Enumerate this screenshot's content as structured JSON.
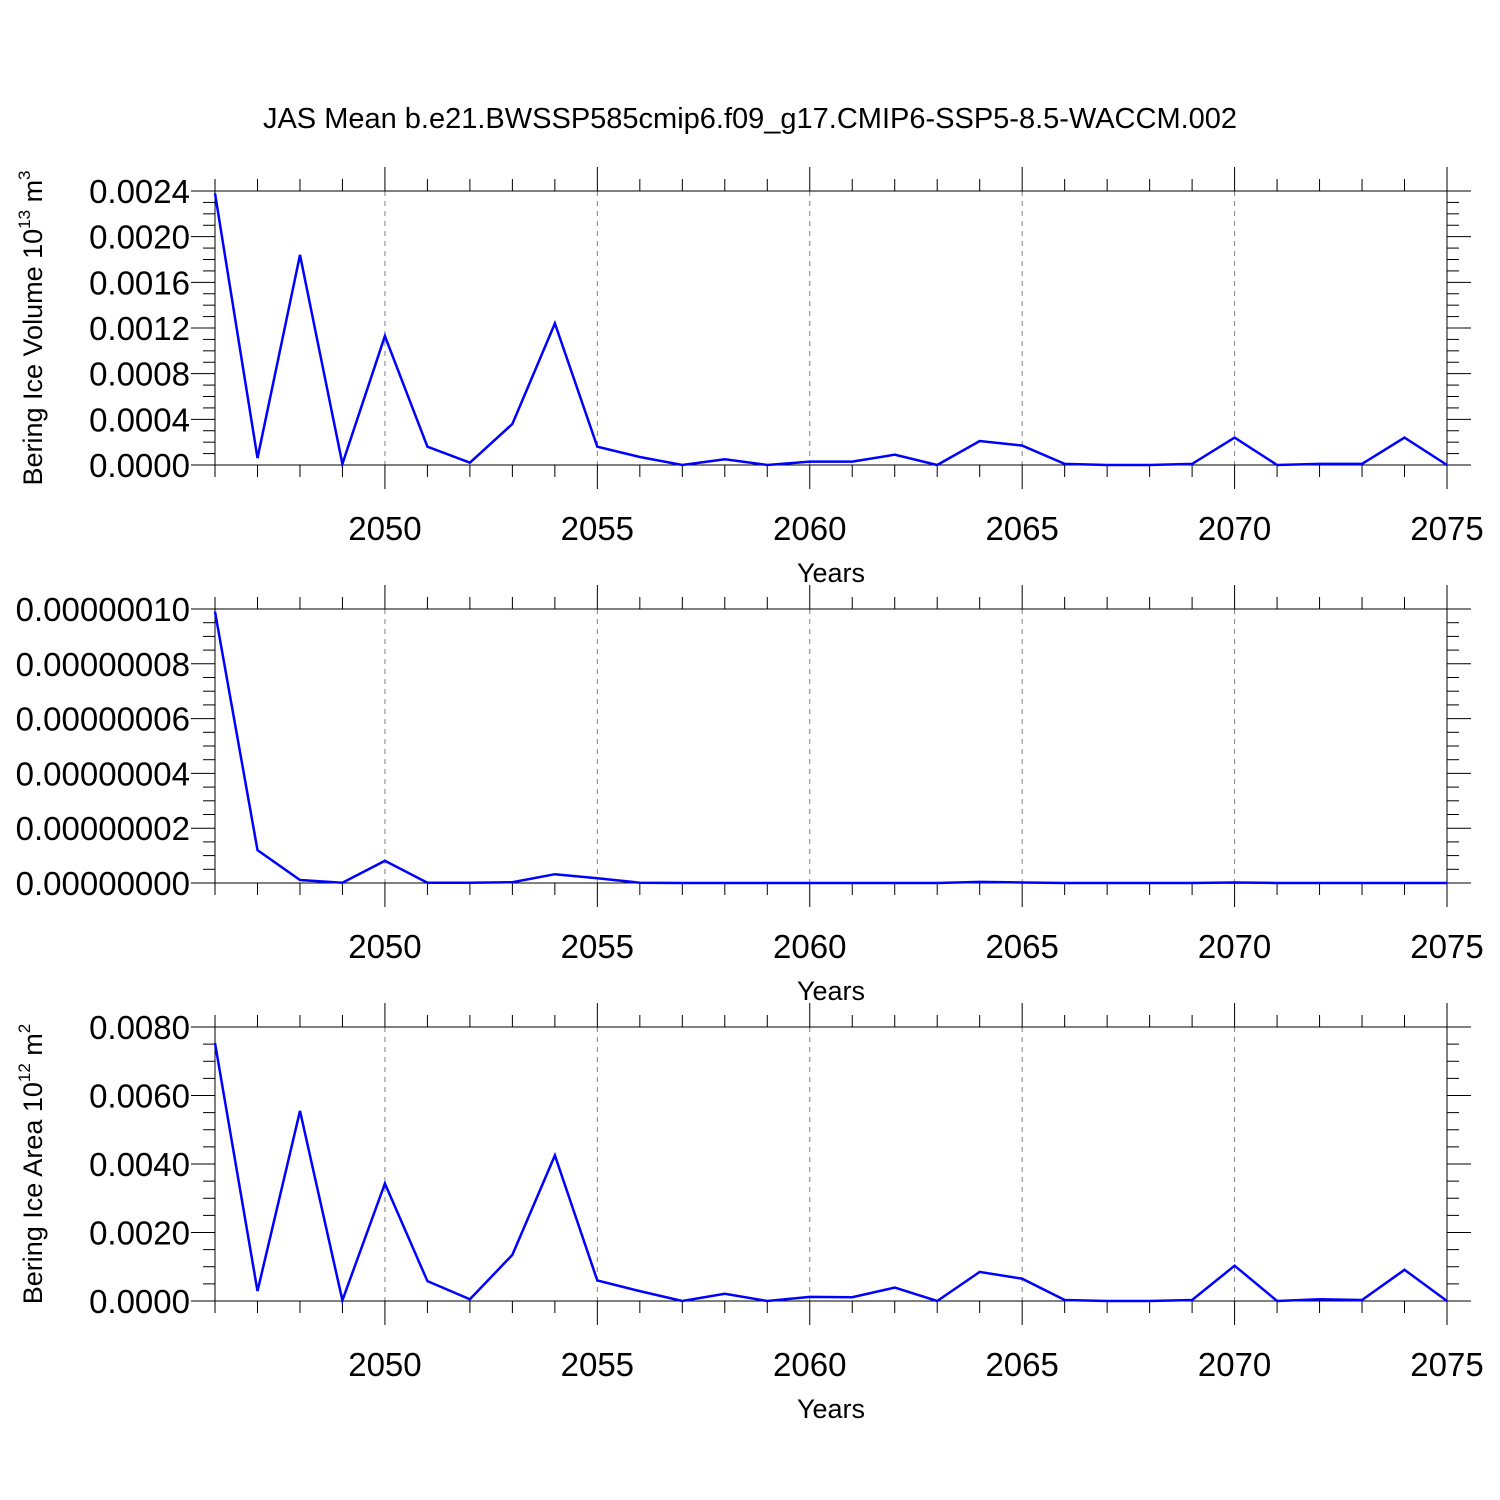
{
  "figure": {
    "title": "JAS Mean b.e21.BWSSP585cmip6.f09_g17.CMIP6-SSP5-8.5-WACCM.002"
  },
  "style": {
    "line_color": "#0000ff",
    "axis_color": "#000000",
    "grid_color": "#808080"
  },
  "chart_data": [
    {
      "type": "line",
      "title": "JAS Mean b.e21.BWSSP585cmip6.f09_g17.CMIP6-SSP5-8.5-WACCM.002",
      "xlabel": "Years",
      "ylabel": {
        "text": "Bering Ice Volume 10",
        "sup": "13",
        "unit": " m",
        "unit_sup": "3"
      },
      "xlim": [
        2046,
        2075
      ],
      "ylim": [
        0,
        0.0024
      ],
      "x_ticks": [
        2050,
        2055,
        2060,
        2065,
        2070,
        2075
      ],
      "x_tick_labels": [
        "2050",
        "2055",
        "2060",
        "2065",
        "2070",
        "2075"
      ],
      "y_ticks": [
        0,
        0.0004,
        0.0008,
        0.0012,
        0.0016,
        0.002,
        0.0024
      ],
      "y_tick_labels": [
        "0.0000",
        "0.0004",
        "0.0008",
        "0.0012",
        "0.0016",
        "0.0020",
        "0.0024"
      ],
      "grid": "vertical dashed at major x ticks",
      "x": [
        2046,
        2047,
        2048,
        2049,
        2050,
        2051,
        2052,
        2053,
        2054,
        2055,
        2056,
        2057,
        2058,
        2059,
        2060,
        2061,
        2062,
        2063,
        2064,
        2065,
        2066,
        2067,
        2068,
        2069,
        2070,
        2071,
        2072,
        2073,
        2074,
        2075
      ],
      "y": [
        0.00238,
        6e-05,
        0.00184,
        1e-05,
        0.00113,
        0.00016,
        2e-05,
        0.00036,
        0.00124,
        0.00016,
        7e-05,
        0.0,
        5e-05,
        0.0,
        3e-05,
        3e-05,
        9e-05,
        0.0,
        0.00021,
        0.00017,
        1e-05,
        0.0,
        0.0,
        1e-05,
        0.00024,
        0.0,
        1e-05,
        1e-05,
        0.00024,
        0.0
      ]
    },
    {
      "type": "line",
      "xlabel": "Years",
      "ylabel": null,
      "xlim": [
        2046,
        2075
      ],
      "ylim": [
        0,
        1e-07
      ],
      "x_ticks": [
        2050,
        2055,
        2060,
        2065,
        2070,
        2075
      ],
      "x_tick_labels": [
        "2050",
        "2055",
        "2060",
        "2065",
        "2070",
        "2075"
      ],
      "y_ticks": [
        0,
        2e-08,
        4e-08,
        6e-08,
        8e-08,
        1e-07
      ],
      "y_tick_labels": [
        "0.00000000",
        "0.00000002",
        "0.00000004",
        "0.00000006",
        "0.00000008",
        "0.00000010"
      ],
      "grid": "vertical dashed at major x ticks",
      "x": [
        2046,
        2047,
        2048,
        2049,
        2050,
        2051,
        2052,
        2053,
        2054,
        2055,
        2056,
        2057,
        2058,
        2059,
        2060,
        2061,
        2062,
        2063,
        2064,
        2065,
        2066,
        2067,
        2068,
        2069,
        2070,
        2071,
        2072,
        2073,
        2074,
        2075
      ],
      "y": [
        9.9e-08,
        1.2e-08,
        1.1e-09,
        1e-10,
        8.1e-09,
        1e-10,
        1e-10,
        3e-10,
        3.2e-09,
        1.7e-09,
        1e-10,
        0,
        0,
        0,
        0,
        0,
        0,
        0,
        4e-10,
        2e-10,
        0,
        0,
        0,
        0,
        2e-10,
        0,
        0,
        0,
        0,
        0
      ]
    },
    {
      "type": "line",
      "xlabel": "Years",
      "ylabel": {
        "text": "Bering Ice Area 10",
        "sup": "12",
        "unit": " m",
        "unit_sup": "2"
      },
      "xlim": [
        2046,
        2075
      ],
      "ylim": [
        0,
        0.008
      ],
      "x_ticks": [
        2050,
        2055,
        2060,
        2065,
        2070,
        2075
      ],
      "x_tick_labels": [
        "2050",
        "2055",
        "2060",
        "2065",
        "2070",
        "2075"
      ],
      "y_ticks": [
        0,
        0.002,
        0.004,
        0.006,
        0.008
      ],
      "y_tick_labels": [
        "0.0000",
        "0.0020",
        "0.0040",
        "0.0060",
        "0.0080"
      ],
      "grid": "vertical dashed at major x ticks",
      "x": [
        2046,
        2047,
        2048,
        2049,
        2050,
        2051,
        2052,
        2053,
        2054,
        2055,
        2056,
        2057,
        2058,
        2059,
        2060,
        2061,
        2062,
        2063,
        2064,
        2065,
        2066,
        2067,
        2068,
        2069,
        2070,
        2071,
        2072,
        2073,
        2074,
        2075
      ],
      "y": [
        0.00753,
        0.00029,
        0.00555,
        2e-05,
        0.00343,
        0.00058,
        5e-05,
        0.00135,
        0.00425,
        0.0006,
        0.00029,
        0.0,
        0.00021,
        0.0,
        0.00012,
        0.00011,
        0.00039,
        0.0,
        0.00085,
        0.00065,
        3e-05,
        0.0,
        0.0,
        3e-05,
        0.00103,
        0.0,
        5e-05,
        3e-05,
        0.00091,
        0.0
      ]
    }
  ]
}
